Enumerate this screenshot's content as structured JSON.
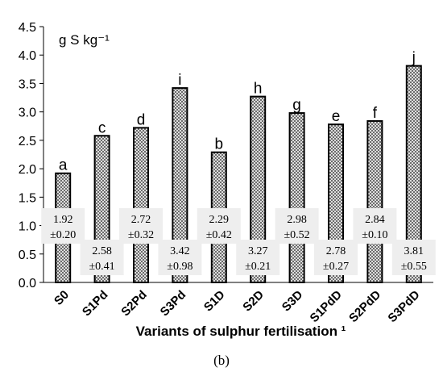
{
  "chart_data": {
    "type": "bar",
    "unit_label": "g S kg⁻¹",
    "xlabel": "Variants of sulphur fertilisation ¹",
    "caption": "(b)",
    "ylim": [
      0,
      4.5
    ],
    "yticks": [
      "0.0",
      "0.5",
      "1.0",
      "1.5",
      "2.0",
      "2.5",
      "3.0",
      "3.5",
      "4.0",
      "4.5"
    ],
    "categories": [
      "S0",
      "S1Pd",
      "S2Pd",
      "S3Pd",
      "S1D",
      "S2D",
      "S3D",
      "S1PdD",
      "S2PdD",
      "S3PdD"
    ],
    "values": [
      1.92,
      2.58,
      2.72,
      3.42,
      2.29,
      3.27,
      2.98,
      2.78,
      2.84,
      3.81
    ],
    "value_labels": [
      "1.92",
      "2.58",
      "2.72",
      "3.42",
      "2.29",
      "3.27",
      "2.98",
      "2.78",
      "2.84",
      "3.81"
    ],
    "errors": [
      "±0.20",
      "±0.41",
      "±0.32",
      "±0.98",
      "±0.42",
      "±0.21",
      "±0.52",
      "±0.27",
      "±0.10",
      "±0.55"
    ],
    "letters": [
      "a",
      "c",
      "d",
      "i",
      "b",
      "h",
      "g",
      "e",
      "f",
      "j"
    ],
    "grid": false,
    "bar_pattern": "crosshatch",
    "colors": {
      "bar_stroke": "#000000",
      "bar_pattern": "#555555",
      "label_box": "#eeeeee"
    }
  }
}
